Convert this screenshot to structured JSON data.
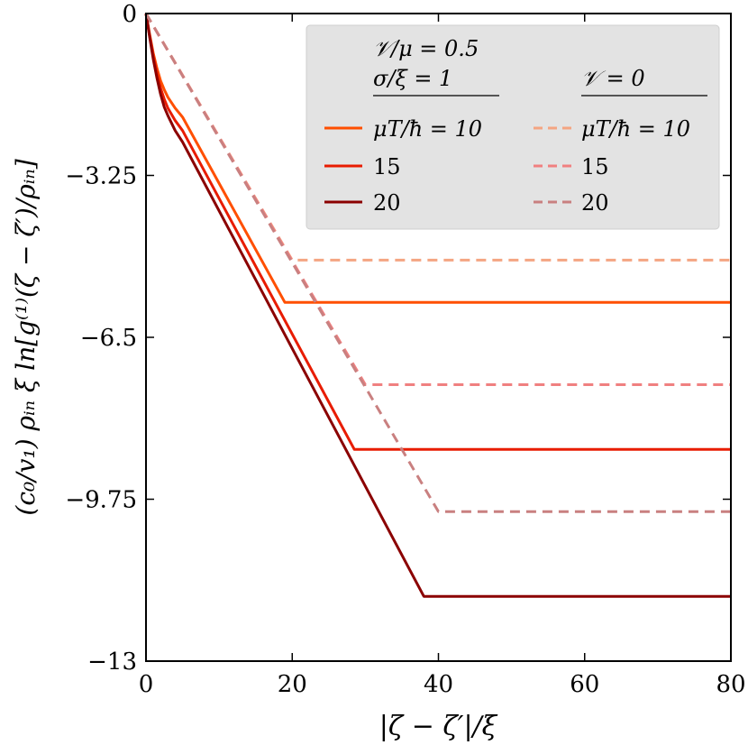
{
  "chart_data": {
    "type": "line",
    "title": "",
    "xlabel": "|ζ − ζ′|/ξ",
    "ylabel": "(c₀/v₁) ρᵢₙ ξ ln[g⁽¹⁾(ζ − ζ′)/ρᵢₙ]",
    "xlim": [
      0,
      80
    ],
    "ylim": [
      -13,
      0
    ],
    "xticks": [
      0,
      20,
      40,
      60,
      80
    ],
    "yticks": [
      0,
      -3.25,
      -6.5,
      -9.75,
      -13
    ],
    "xtick_labels": [
      "0",
      "20",
      "40",
      "60",
      "80"
    ],
    "ytick_labels": [
      "0",
      "−3.25",
      "−6.5",
      "−9.75",
      "−13"
    ],
    "grid": false,
    "legend": {
      "placement": "top-right",
      "left_header_line1": "𝒱/μ = 0.5",
      "left_header_line2": "σ/ξ = 1",
      "right_header": "𝒱 = 0"
    },
    "series": [
      {
        "name": "μT/ħ = 10",
        "group": "V/mu=0.5, sigma/xi=1",
        "style": "solid",
        "color": "#ff4f00",
        "x": [
          0,
          0.5,
          1,
          1.5,
          2,
          2.5,
          3,
          4,
          5,
          19,
          80
        ],
        "y": [
          0,
          -0.42,
          -0.8,
          -1.1,
          -1.35,
          -1.53,
          -1.68,
          -1.9,
          -2.08,
          -5.8,
          -5.8
        ]
      },
      {
        "name": "15",
        "group": "V/mu=0.5, sigma/xi=1",
        "style": "solid",
        "color": "#e81c00",
        "x": [
          0,
          0.5,
          1,
          1.5,
          2,
          2.5,
          3,
          4,
          5,
          28.5,
          80
        ],
        "y": [
          0,
          -0.45,
          -0.85,
          -1.2,
          -1.5,
          -1.72,
          -1.9,
          -2.15,
          -2.35,
          -8.75,
          -8.75
        ]
      },
      {
        "name": "20",
        "group": "V/mu=0.5, sigma/xi=1",
        "style": "solid",
        "color": "#8b0000",
        "x": [
          0,
          0.5,
          1,
          1.5,
          2,
          2.5,
          3,
          4,
          5,
          38,
          80
        ],
        "y": [
          0,
          -0.48,
          -0.92,
          -1.3,
          -1.62,
          -1.88,
          -2.05,
          -2.35,
          -2.58,
          -11.7,
          -11.7
        ]
      },
      {
        "name": "μT/ħ = 10",
        "group": "V=0",
        "style": "dashed",
        "color": "#f4a582",
        "x": [
          0,
          20,
          80
        ],
        "y": [
          0,
          -4.95,
          -4.95
        ]
      },
      {
        "name": "15",
        "group": "V=0",
        "style": "dashed",
        "color": "#f08080",
        "x": [
          0,
          30,
          80
        ],
        "y": [
          0,
          -7.45,
          -7.45
        ]
      },
      {
        "name": "20",
        "group": "V=0",
        "style": "dashed",
        "color": "#c98080",
        "x": [
          0,
          40,
          80
        ],
        "y": [
          0,
          -10.0,
          -10.0
        ]
      }
    ]
  }
}
